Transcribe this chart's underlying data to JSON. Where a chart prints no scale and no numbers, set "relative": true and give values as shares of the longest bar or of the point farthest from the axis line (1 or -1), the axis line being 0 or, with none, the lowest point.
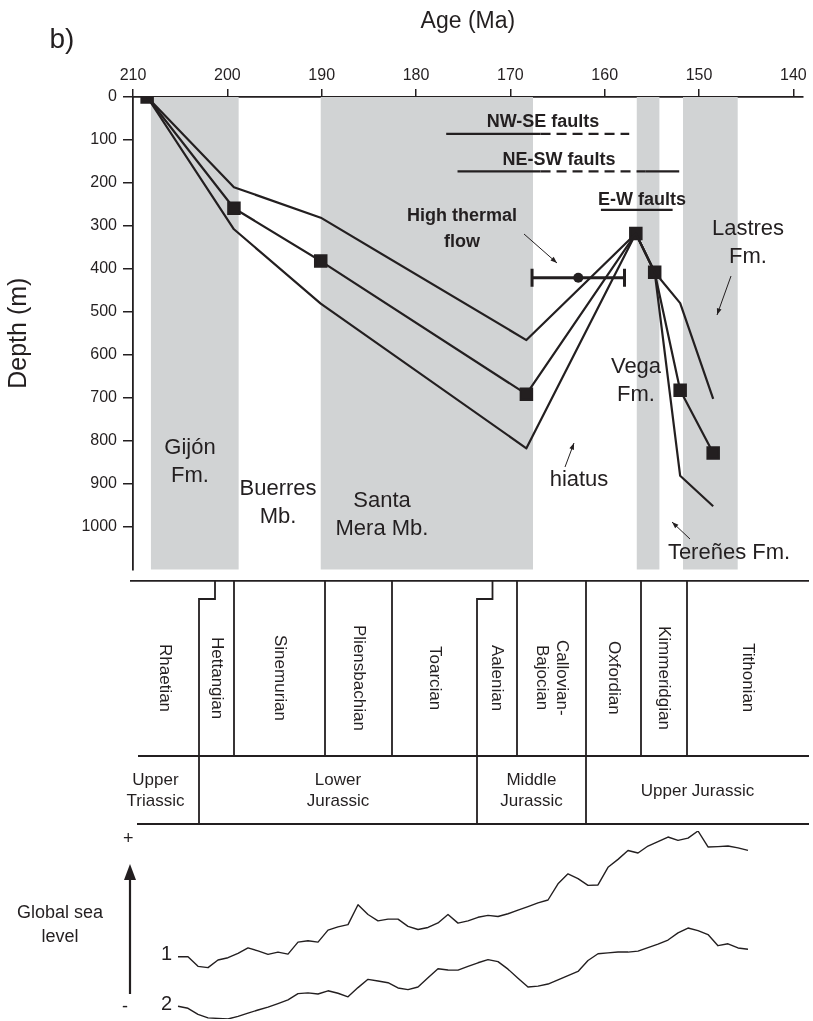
{
  "chart_data": [
    {
      "type": "line",
      "xlabel": "Age (Ma)",
      "ylabel": "Depth (m)",
      "xlim": [
        210,
        139
      ],
      "ylim": [
        1100,
        0
      ],
      "xticks": [
        210,
        200,
        190,
        180,
        170,
        160,
        150,
        140
      ],
      "yticks": [
        0,
        100,
        200,
        300,
        400,
        500,
        600,
        700,
        800,
        900,
        1000
      ],
      "grid": false,
      "legend": false,
      "series": [
        {
          "type": "line",
          "x": [
            208.5,
            199.3,
            190.1,
            168.3,
            156.7,
            154.7,
            152.0,
            148.5
          ],
          "values": [
            0,
            210,
            281,
            566,
            318,
            408,
            480,
            703
          ],
          "color": "#231f20",
          "marker": "none",
          "line_style": "solid"
        },
        {
          "type": "line",
          "x": [
            208.5,
            199.3,
            190.1,
            168.3,
            156.7,
            154.7,
            152.0,
            148.5
          ],
          "values": [
            0,
            259,
            382,
            692,
            318,
            408,
            683,
            829
          ],
          "color": "#231f20",
          "marker": "square",
          "line_style": "solid"
        },
        {
          "type": "line",
          "x": [
            208.5,
            199.3,
            190.1,
            168.3,
            156.7,
            154.7,
            152.0,
            148.5
          ],
          "values": [
            0,
            308,
            481,
            818,
            318,
            408,
            882,
            953
          ],
          "color": "#231f20",
          "marker": "none",
          "line_style": "solid"
        },
        {
          "type": "line",
          "x": [
            176.8,
            166.8
          ],
          "values": [
            86,
            86
          ],
          "color": "#231f20",
          "marker": "none",
          "line_style": "solid"
        },
        {
          "type": "line",
          "x": [
            166.8,
            157.4
          ],
          "values": [
            86,
            86
          ],
          "color": "#231f20",
          "marker": "none",
          "line_style": "dashed"
        },
        {
          "type": "line",
          "x": [
            175.6,
            166.8
          ],
          "values": [
            173,
            173
          ],
          "color": "#231f20",
          "marker": "none",
          "line_style": "solid"
        },
        {
          "type": "line",
          "x": [
            166.8,
            155.7
          ],
          "values": [
            173,
            173
          ],
          "color": "#231f20",
          "marker": "none",
          "line_style": "dashed"
        },
        {
          "type": "line",
          "x": [
            155.7,
            152.1
          ],
          "values": [
            173,
            173
          ],
          "color": "#231f20",
          "marker": "none",
          "line_style": "solid"
        },
        {
          "type": "line",
          "x": [
            160.4,
            152.8
          ],
          "values": [
            263,
            263
          ],
          "color": "#231f20",
          "marker": "none",
          "line_style": "solid"
        },
        {
          "type": "scatter",
          "x": [
            162.8
          ],
          "values": [
            421
          ],
          "xerrors": [
            [
              157.9,
              167.7
            ]
          ],
          "color": "#231f20",
          "marker": "circle"
        }
      ],
      "bands": [
        {
          "axis": "x",
          "from": 208.1,
          "to": 198.8,
          "color": "#d1d3d4"
        },
        {
          "axis": "x",
          "from": 190.1,
          "to": 167.6,
          "color": "#d1d3d4"
        },
        {
          "axis": "x",
          "from": 156.6,
          "to": 154.2,
          "color": "#d1d3d4"
        },
        {
          "axis": "x",
          "from": 151.7,
          "to": 145.9,
          "color": "#d1d3d4"
        }
      ],
      "annotations": [
        "b)",
        "NW-SE faults",
        "NE-SW faults",
        "E-W faults",
        "High thermal\nflow",
        "Gijón\nFm.",
        "Buerres\nMb.",
        "Santa\nMera Mb.",
        "hiatus",
        "Vega\nFm.",
        "Lastres\nFm.",
        "Tereñes Fm."
      ]
    },
    {
      "type": "other",
      "annotations": [
        "Rhaetian",
        "Hettangian",
        "Sinemurian",
        "Pliensbachian",
        "Toarcian",
        "Aalenian",
        "Callovian-Bajocian",
        "Oxfordian",
        "Kimmeridgian",
        "Tithonian",
        "Upper Triassic",
        "Lower Jurassic",
        "Middle Jurassic",
        "Upper Jurassic"
      ]
    },
    {
      "type": "line",
      "relative": true,
      "ylabel": "Global sea level",
      "marker": "none",
      "annotations": [
        "+",
        "-"
      ],
      "categories": [
        null,
        null,
        null,
        null,
        null,
        null,
        null,
        null,
        null,
        null,
        null,
        null,
        null,
        null,
        null,
        null,
        null,
        null,
        null,
        null,
        null,
        null,
        null,
        null,
        null,
        null,
        null,
        null,
        null,
        null,
        null,
        null,
        null,
        null,
        null,
        null,
        null,
        null,
        null,
        null,
        null,
        null,
        null,
        null,
        null,
        null,
        null,
        null,
        null,
        null,
        null,
        null,
        null,
        null,
        null,
        null,
        null,
        null
      ],
      "series": [
        {
          "name": "1",
          "color": "#231f20",
          "values": [
            0.331,
            0.331,
            0.28,
            0.273,
            0.314,
            0.326,
            0.349,
            0.378,
            0.362,
            0.344,
            0.356,
            0.345,
            0.409,
            0.416,
            0.409,
            0.473,
            0.49,
            0.502,
            0.608,
            0.556,
            0.522,
            0.531,
            0.531,
            0.493,
            0.476,
            0.487,
            0.511,
            0.556,
            0.51,
            0.522,
            0.541,
            0.551,
            0.545,
            0.56,
            0.579,
            0.598,
            0.618,
            0.633,
            0.719,
            0.772,
            0.747,
            0.711,
            0.713,
            0.807,
            0.849,
            0.896,
            0.883,
            0.92,
            0.944,
            0.968,
            0.95,
            0.962,
            1.0,
            0.915,
            0.917,
            0.92,
            0.91,
            0.897
          ]
        },
        {
          "name": "2",
          "color": "#231f20",
          "values": [
            0.068,
            0.057,
            0.025,
            0.006,
            0.003,
            0.0,
            0.014,
            0.031,
            0.048,
            0.063,
            0.082,
            0.102,
            0.135,
            0.139,
            0.133,
            0.15,
            0.137,
            0.118,
            0.167,
            0.211,
            0.202,
            0.193,
            0.165,
            0.156,
            0.17,
            0.219,
            0.267,
            0.261,
            0.26,
            0.28,
            0.299,
            0.316,
            0.305,
            0.265,
            0.217,
            0.17,
            0.175,
            0.186,
            0.208,
            0.231,
            0.253,
            0.311,
            0.347,
            0.352,
            0.356,
            0.356,
            0.361,
            0.38,
            0.398,
            0.42,
            0.458,
            0.484,
            0.47,
            0.449,
            0.39,
            0.4,
            0.378,
            0.371
          ]
        }
      ]
    }
  ]
}
